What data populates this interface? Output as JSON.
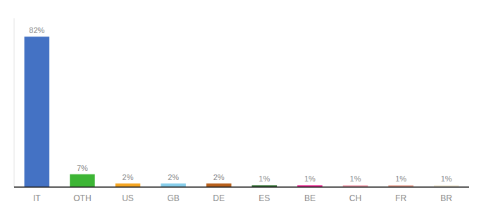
{
  "chart_data": {
    "type": "bar",
    "categories": [
      "IT",
      "OTH",
      "US",
      "GB",
      "DE",
      "ES",
      "BE",
      "CH",
      "FR",
      "BR"
    ],
    "values": [
      82,
      7,
      2,
      2,
      2,
      1,
      1,
      1,
      1,
      1
    ],
    "value_labels": [
      "82%",
      "7%",
      "2%",
      "2%",
      "2%",
      "1%",
      "1%",
      "1%",
      "1%",
      "1%"
    ],
    "colors": [
      "#4472c4",
      "#3db535",
      "#f5a623",
      "#87ceeb",
      "#b8601c",
      "#2d6e2d",
      "#e91e8c",
      "#f4a0b0",
      "#e8a090",
      "#f0ead8"
    ],
    "ylim": [
      0,
      92
    ],
    "data_labels": true,
    "tick_labels": "x"
  }
}
